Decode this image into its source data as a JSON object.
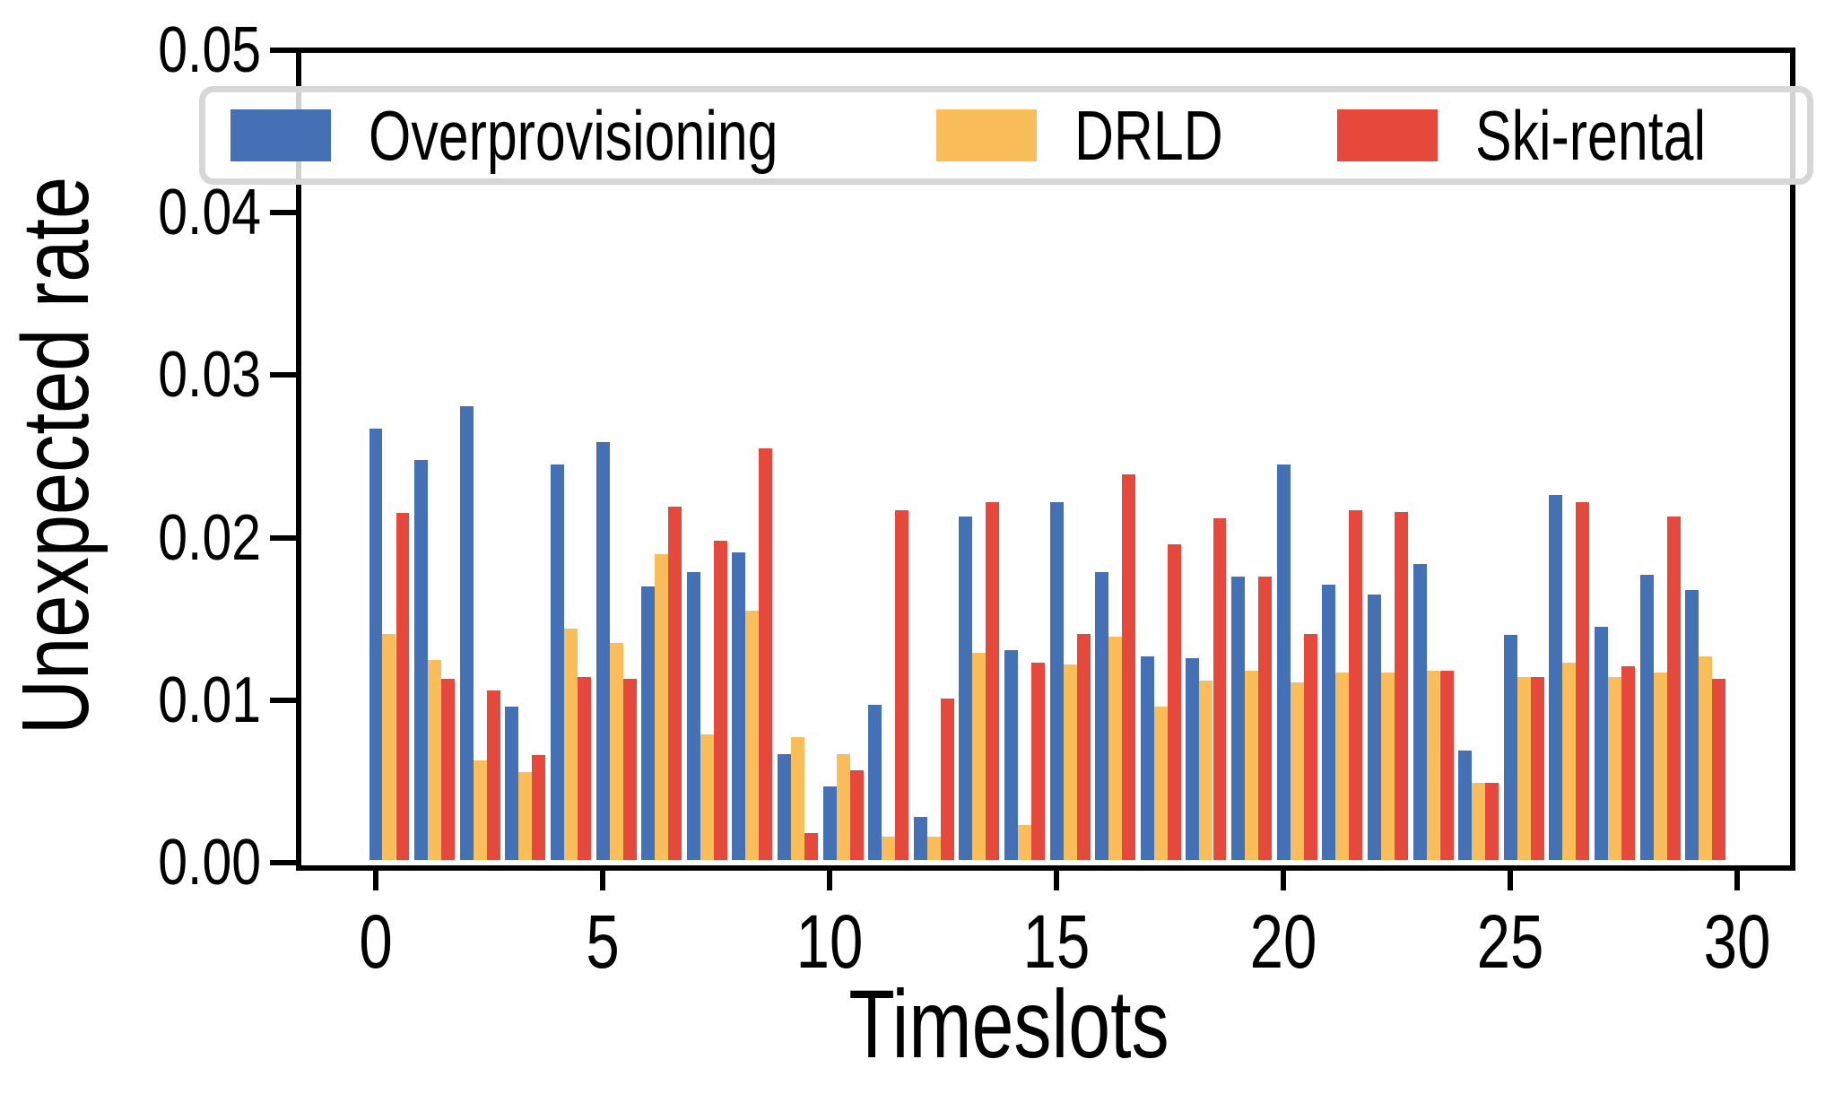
{
  "chart_data": {
    "type": "bar",
    "title": "",
    "xlabel": "Timeslots",
    "ylabel": "Unexpected rate",
    "categories": [
      0,
      1,
      2,
      3,
      4,
      5,
      6,
      7,
      8,
      9,
      10,
      11,
      12,
      13,
      14,
      15,
      16,
      17,
      18,
      19,
      20,
      21,
      22,
      23,
      24,
      25,
      26,
      27,
      28,
      29
    ],
    "series": [
      {
        "name": "Overprovisioning",
        "color": "#4471B6",
        "values": [
          0.0267,
          0.0248,
          0.0281,
          0.0096,
          0.0245,
          0.0259,
          0.017,
          0.0179,
          0.0191,
          0.0067,
          0.0047,
          0.0097,
          0.0028,
          0.0213,
          0.0131,
          0.0222,
          0.0179,
          0.0127,
          0.0126,
          0.0176,
          0.0245,
          0.0171,
          0.0165,
          0.0184,
          0.0069,
          0.014,
          0.0226,
          0.0145,
          0.0177,
          0.0168
        ]
      },
      {
        "name": "DRLD",
        "color": "#F9BD5A",
        "values": [
          0.0141,
          0.0125,
          0.0063,
          0.0056,
          0.0144,
          0.0135,
          0.019,
          0.0079,
          0.0155,
          0.0077,
          0.0067,
          0.0016,
          0.0016,
          0.0129,
          0.0023,
          0.0122,
          0.0139,
          0.0096,
          0.0112,
          0.0118,
          0.0111,
          0.0117,
          0.0117,
          0.0118,
          0.0049,
          0.0114,
          0.0123,
          0.0114,
          0.0117,
          0.0127
        ]
      },
      {
        "name": "Ski-rental",
        "color": "#E6493B",
        "values": [
          0.0215,
          0.0113,
          0.0106,
          0.0066,
          0.0114,
          0.0113,
          0.0219,
          0.0198,
          0.0255,
          0.0018,
          0.0057,
          0.0217,
          0.0101,
          0.0222,
          0.0123,
          0.0141,
          0.0239,
          0.0196,
          0.0212,
          0.0176,
          0.0141,
          0.0217,
          0.0216,
          0.0118,
          0.0049,
          0.0114,
          0.0222,
          0.0121,
          0.0213,
          0.0113
        ]
      }
    ],
    "ylim": [
      0,
      0.05
    ],
    "y_ticks": [
      0,
      0.01,
      0.02,
      0.03,
      0.04,
      0.05
    ],
    "y_tick_labels": [
      "0.00",
      "0.01",
      "0.02",
      "0.03",
      "0.04",
      "0.05"
    ],
    "x_ticks": [
      0,
      5,
      10,
      15,
      20,
      25,
      30
    ],
    "x_tick_labels": [
      "0",
      "5",
      "10",
      "15",
      "20",
      "25",
      "30"
    ],
    "group_offsets": [
      0,
      0.296,
      0.593
    ],
    "bar_width": 0.296,
    "grid": false,
    "legend_position": "top-inside"
  },
  "legend": {
    "items": [
      "Overprovisioning",
      "DRLD",
      "Ski-rental"
    ]
  }
}
